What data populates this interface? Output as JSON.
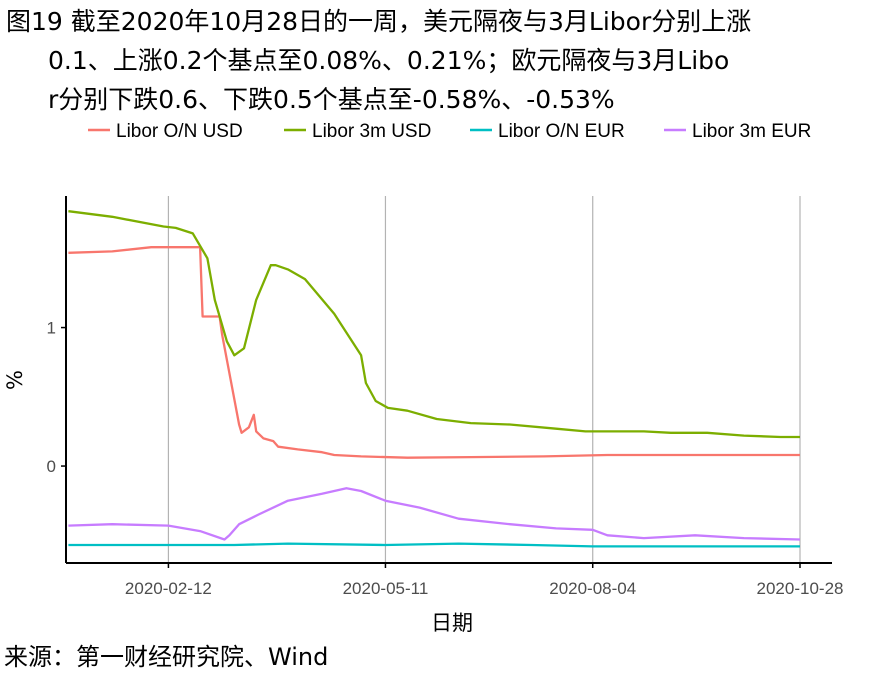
{
  "title": {
    "line1": "图19  截至2020年10月28日的一周，美元隔夜与3月Libor分别上涨",
    "line2": "0.1、上涨0.2个基点至0.08%、0.21%；欧元隔夜与3月Libo",
    "line3": "r分别下跌0.6、下跌0.5个基点至-0.58%、-0.53%"
  },
  "source": "来源：第一财经研究院、Wind",
  "colors": {
    "Libor O/N USD": "#f8766d",
    "Libor 3m USD": "#7cae00",
    "Libor O/N EUR": "#00bfc4",
    "Libor 3m EUR": "#c77cff"
  },
  "chart_data": {
    "type": "line",
    "xlabel": "日期",
    "ylabel": "%",
    "x_ticks": [
      "2020-02-12",
      "2020-05-11",
      "2020-08-04",
      "2020-10-28"
    ],
    "y_ticks": [
      0,
      1
    ],
    "ylim": [
      -0.7,
      1.95
    ],
    "xlim": [
      "2020-01-01",
      "2020-10-28"
    ],
    "legend_position": "top",
    "grid": "vertical",
    "series": [
      {
        "name": "Libor O/N USD",
        "x": [
          "2020-01-02",
          "2020-01-20",
          "2020-02-05",
          "2020-02-25",
          "2020-02-26",
          "2020-03-04",
          "2020-03-05",
          "2020-03-12",
          "2020-03-13",
          "2020-03-16",
          "2020-03-18",
          "2020-03-19",
          "2020-03-22",
          "2020-03-26",
          "2020-03-28",
          "2020-04-05",
          "2020-04-15",
          "2020-04-20",
          "2020-05-01",
          "2020-05-20",
          "2020-06-15",
          "2020-07-15",
          "2020-08-10",
          "2020-09-15",
          "2020-10-28"
        ],
        "y": [
          1.54,
          1.55,
          1.58,
          1.58,
          1.08,
          1.08,
          0.95,
          0.3,
          0.24,
          0.28,
          0.37,
          0.25,
          0.2,
          0.18,
          0.14,
          0.12,
          0.1,
          0.08,
          0.07,
          0.06,
          0.065,
          0.07,
          0.08,
          0.08,
          0.08
        ]
      },
      {
        "name": "Libor 3m USD",
        "x": [
          "2020-01-02",
          "2020-01-20",
          "2020-02-10",
          "2020-02-15",
          "2020-02-22",
          "2020-02-28",
          "2020-03-02",
          "2020-03-07",
          "2020-03-10",
          "2020-03-14",
          "2020-03-19",
          "2020-03-25",
          "2020-03-27",
          "2020-04-01",
          "2020-04-08",
          "2020-04-20",
          "2020-05-01",
          "2020-05-03",
          "2020-05-07",
          "2020-05-12",
          "2020-05-20",
          "2020-06-01",
          "2020-06-15",
          "2020-07-01",
          "2020-07-20",
          "2020-08-01",
          "2020-08-10",
          "2020-08-25",
          "2020-09-05",
          "2020-09-20",
          "2020-10-05",
          "2020-10-20",
          "2020-10-28"
        ],
        "y": [
          1.84,
          1.8,
          1.73,
          1.72,
          1.68,
          1.5,
          1.2,
          0.9,
          0.8,
          0.85,
          1.2,
          1.45,
          1.45,
          1.42,
          1.35,
          1.1,
          0.8,
          0.6,
          0.47,
          0.42,
          0.4,
          0.34,
          0.31,
          0.3,
          0.27,
          0.25,
          0.25,
          0.25,
          0.24,
          0.24,
          0.22,
          0.21,
          0.21
        ]
      },
      {
        "name": "Libor O/N EUR",
        "x": [
          "2020-01-02",
          "2020-02-12",
          "2020-03-10",
          "2020-04-01",
          "2020-05-11",
          "2020-06-10",
          "2020-07-10",
          "2020-08-04",
          "2020-09-15",
          "2020-10-28"
        ],
        "y": [
          -0.57,
          -0.57,
          -0.57,
          -0.56,
          -0.57,
          -0.56,
          -0.57,
          -0.58,
          -0.58,
          -0.58
        ]
      },
      {
        "name": "Libor 3m EUR",
        "x": [
          "2020-01-02",
          "2020-01-20",
          "2020-02-12",
          "2020-02-25",
          "2020-03-06",
          "2020-03-08",
          "2020-03-12",
          "2020-03-20",
          "2020-04-01",
          "2020-04-15",
          "2020-04-25",
          "2020-05-01",
          "2020-05-11",
          "2020-05-25",
          "2020-06-10",
          "2020-07-01",
          "2020-07-20",
          "2020-08-04",
          "2020-08-10",
          "2020-08-25",
          "2020-09-15",
          "2020-10-05",
          "2020-10-28"
        ],
        "y": [
          -0.43,
          -0.42,
          -0.43,
          -0.47,
          -0.53,
          -0.5,
          -0.42,
          -0.35,
          -0.25,
          -0.2,
          -0.16,
          -0.18,
          -0.25,
          -0.3,
          -0.38,
          -0.42,
          -0.45,
          -0.46,
          -0.5,
          -0.52,
          -0.5,
          -0.52,
          -0.53
        ]
      }
    ]
  }
}
